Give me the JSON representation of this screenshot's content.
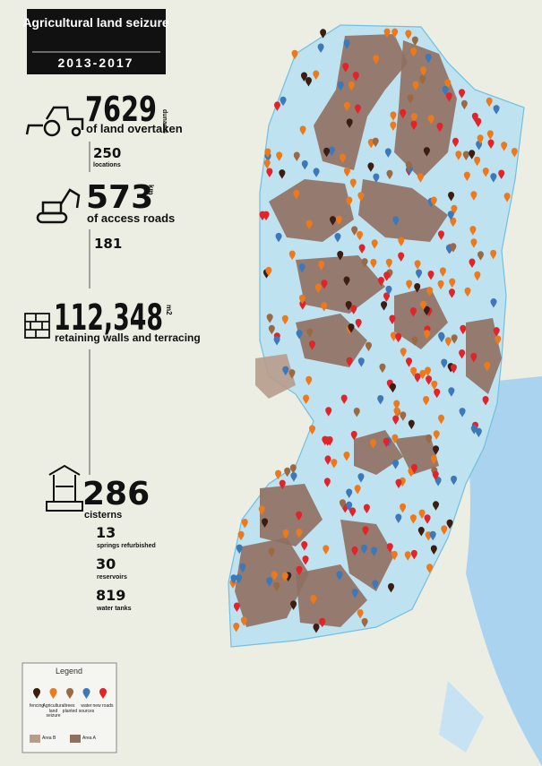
{
  "headline": {
    "title": "Agricultural land seizure",
    "period": "2013-2017"
  },
  "stats": {
    "land": {
      "value": "7629",
      "unit": "dunams",
      "label": "of land overtaken",
      "sub": {
        "value": "250",
        "label": "locations"
      }
    },
    "roads": {
      "value": "573",
      "unit": "km",
      "label": "of access roads",
      "sub": {
        "value": "181"
      }
    },
    "walls": {
      "value": "112,348",
      "unit": "m2",
      "label": "retaining walls and terracing"
    },
    "cisterns": {
      "value": "286",
      "label": "cisterns"
    },
    "water": [
      {
        "value": "13",
        "label": "springs refurbished"
      },
      {
        "value": "30",
        "label": "reservoirs"
      },
      {
        "value": "819",
        "label": "water tanks"
      }
    ]
  },
  "legend": {
    "title": "Legend",
    "markers": [
      {
        "name": "fencing",
        "color": "#3b1d12"
      },
      {
        "name": "Agricultural land seizure",
        "color": "#ec7a1c"
      },
      {
        "name": "trees planted",
        "color": "#9a6a45"
      },
      {
        "name": "water sources",
        "color": "#3d78b8"
      },
      {
        "name": "new roads",
        "color": "#e0242a"
      }
    ],
    "areas": [
      {
        "name": "Area B",
        "color": "#b79c8c"
      },
      {
        "name": "Area A",
        "color": "#8f6f60"
      }
    ]
  }
}
